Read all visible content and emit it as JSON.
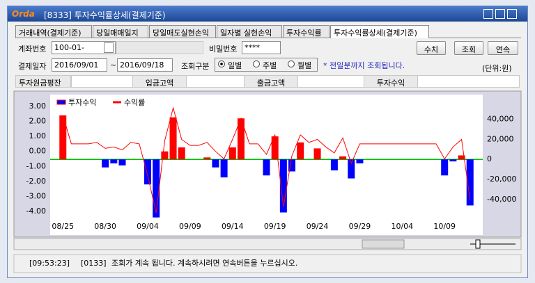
{
  "window": {
    "logo": "Orda",
    "title": "[8333] 투자수익률상세(결제기준)"
  },
  "tabs": [
    "거래내역(결제기준)",
    "당일매매일지",
    "당일매도실현손익",
    "일자별 실현손익",
    "투자수익률",
    "투자수익률상세(결제기준)"
  ],
  "form": {
    "account_label": "계좌번호",
    "account": "100-01-",
    "password_label": "비밀번호",
    "password": "****",
    "buttons": [
      "수치",
      "조회",
      "연속"
    ],
    "date_label": "결제일자",
    "start_date": "2016/09/01",
    "tilde": "~",
    "end_date": "2016/09/18",
    "query_label": "조회구분",
    "radios": [
      "일별",
      "주별",
      "월별"
    ],
    "notice": "* 전일분까지 조회됩니다.",
    "unit": "(단위:원)"
  },
  "summary": [
    "투자원금평잔",
    "입금고액",
    "출금고액",
    "투자수익"
  ],
  "chart_data": {
    "type": "combo",
    "categories": [
      null,
      "08/25",
      null,
      null,
      null,
      null,
      "08/30",
      null,
      null,
      null,
      null,
      "09/04",
      null,
      null,
      null,
      null,
      "09/09",
      null,
      null,
      null,
      null,
      "09/14",
      null,
      null,
      null,
      null,
      "09/19",
      null,
      null,
      null,
      null,
      "09/24",
      null,
      null,
      null,
      null,
      "09/29",
      null,
      null,
      null,
      null,
      "10/04",
      null,
      null,
      null,
      null,
      "10/09",
      null,
      null,
      null,
      null
    ],
    "series": [
      {
        "name": "투자수익",
        "type": "bar",
        "axis": "y2",
        "color": "#ff0000",
        "negative_color": "#0000ff",
        "values": [
          null,
          44000,
          0,
          0,
          0,
          0,
          -8000,
          -4000,
          -6000,
          0,
          0,
          -25000,
          -58000,
          8000,
          42000,
          12000,
          0,
          0,
          2000,
          -8000,
          -18000,
          12000,
          41000,
          0,
          0,
          -16000,
          23000,
          -53000,
          -12000,
          17000,
          0,
          11000,
          0,
          -11000,
          3000,
          -19000,
          -4000,
          0,
          0,
          0,
          0,
          0,
          0,
          0,
          0,
          0,
          -16000,
          -2000,
          4000,
          -46000,
          null
        ]
      },
      {
        "name": "수익률",
        "type": "line",
        "color": "#ff0000",
        "values": [
          null,
          2.4,
          0.5,
          0.5,
          0.5,
          0.6,
          0.2,
          0.3,
          0.1,
          0.6,
          0.5,
          -1.6,
          -4.1,
          0.7,
          2.9,
          0.8,
          0.4,
          0.4,
          0.6,
          0,
          -0.5,
          0.8,
          2.2,
          0.5,
          0.5,
          -0.2,
          1.1,
          -3.7,
          -0.3,
          1.1,
          0.6,
          0.8,
          0.3,
          -0.1,
          0.9,
          -0.8,
          0.5,
          0.5,
          0.5,
          0.5,
          0.5,
          0.5,
          0.5,
          0.5,
          0.5,
          0.5,
          -0.5,
          0.3,
          0.8,
          -3.2,
          null
        ]
      }
    ],
    "ylim": [
      -5.2,
      3.6
    ],
    "yticks": [
      {
        "value": 3,
        "label": "3.00"
      },
      {
        "value": 2,
        "label": "2.00"
      },
      {
        "value": 1,
        "label": "1.00"
      },
      {
        "value": 0,
        "label": "0.00"
      },
      {
        "value": -1,
        "label": "-1.00"
      },
      {
        "value": -2,
        "label": "-2.00"
      },
      {
        "value": -3,
        "label": "-3.00"
      },
      {
        "value": -4,
        "label": "-4.00"
      }
    ],
    "y2lim": [
      -70000,
      62000
    ],
    "y2ticks": [
      {
        "value": 40000,
        "label": "40,000"
      },
      {
        "value": 20000,
        "label": "20,000"
      },
      0,
      {
        "value": -20000,
        "label": "-20,000"
      },
      {
        "value": -40000,
        "label": "-40,000"
      }
    ],
    "zero_line_color": "#00c000",
    "legend": "top-left"
  },
  "status": {
    "time": "[09:53:23]",
    "code": "[0133]",
    "message": "조회가 계속 됩니다. 계속하시려면 연속버튼을 누르십시오."
  }
}
